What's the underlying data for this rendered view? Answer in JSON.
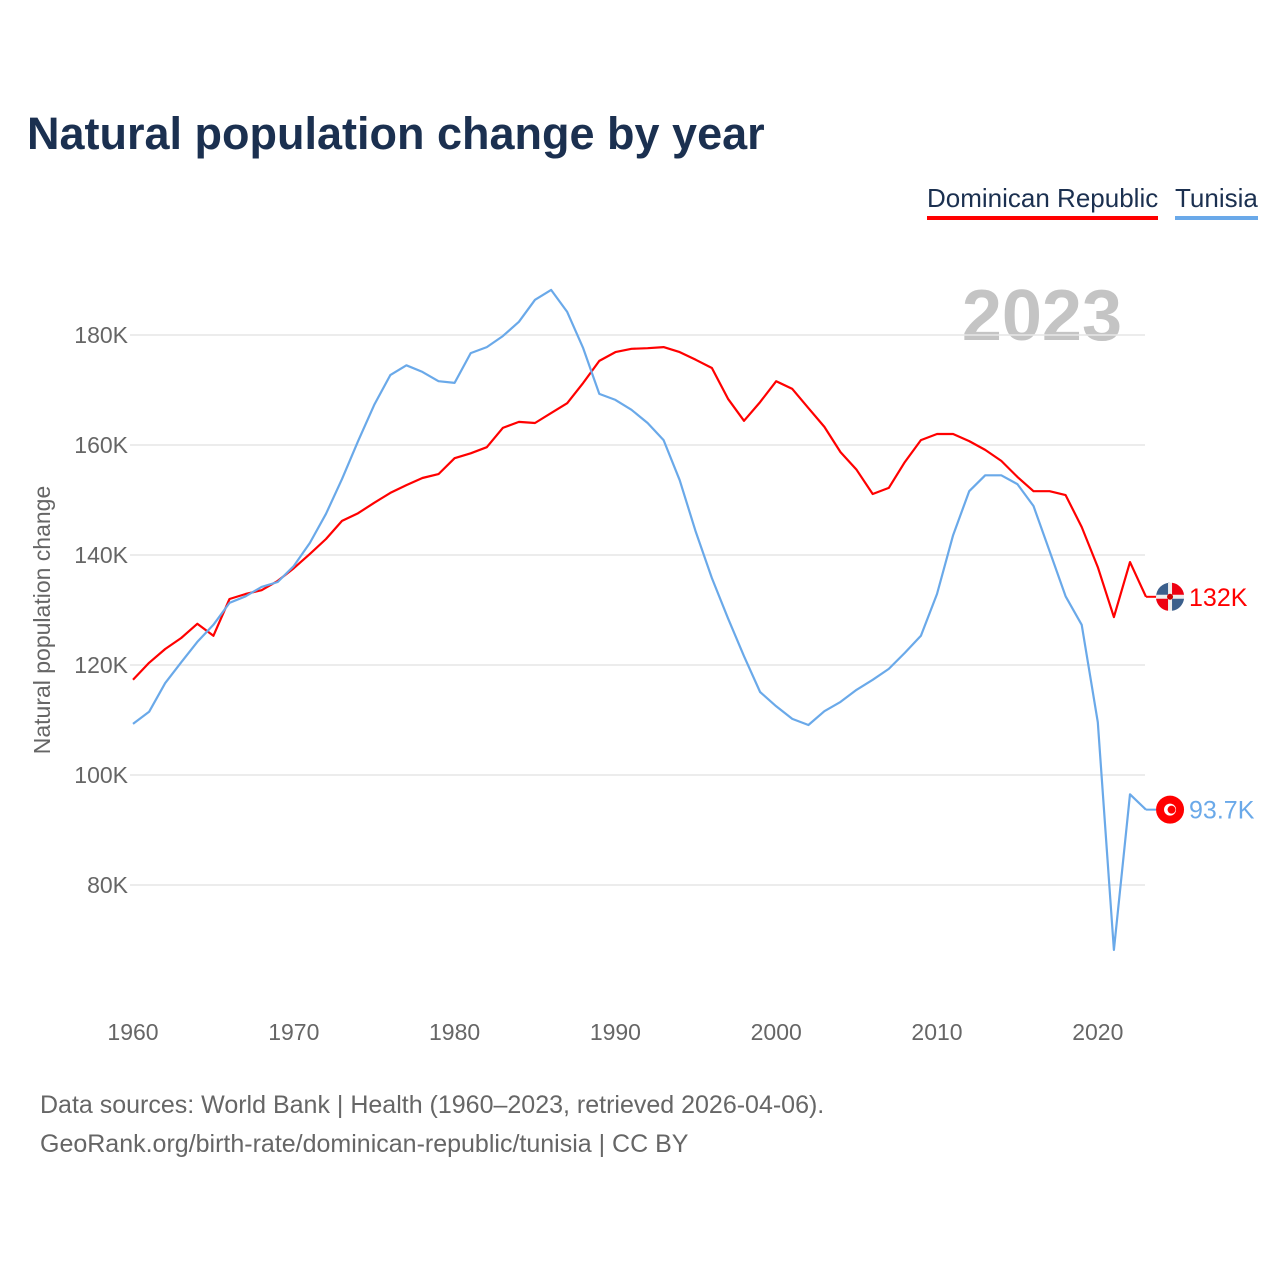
{
  "chart_data": {
    "type": "line",
    "title": "Natural population change by year",
    "ylabel": "Natural population change",
    "xlabel": "",
    "year_watermark": "2023",
    "xlim": [
      1960,
      2023
    ],
    "ylim": [
      60000,
      190000
    ],
    "x_ticks": [
      "1960",
      "1970",
      "1980",
      "1990",
      "2000",
      "2010",
      "2020"
    ],
    "y_ticks": [
      {
        "value": 80000,
        "label": "80K"
      },
      {
        "value": 100000,
        "label": "100K"
      },
      {
        "value": 120000,
        "label": "120K"
      },
      {
        "value": 140000,
        "label": "140K"
      },
      {
        "value": 160000,
        "label": "160K"
      },
      {
        "value": 180000,
        "label": "180K"
      }
    ],
    "grid": true,
    "legend_position": "top-right",
    "x": [
      1960,
      1961,
      1962,
      1963,
      1964,
      1965,
      1966,
      1967,
      1968,
      1969,
      1970,
      1971,
      1972,
      1973,
      1974,
      1975,
      1976,
      1977,
      1978,
      1979,
      1980,
      1981,
      1982,
      1983,
      1984,
      1985,
      1986,
      1987,
      1988,
      1989,
      1990,
      1991,
      1992,
      1993,
      1994,
      1995,
      1996,
      1997,
      1998,
      1999,
      2000,
      2001,
      2002,
      2003,
      2004,
      2005,
      2006,
      2007,
      2008,
      2009,
      2010,
      2011,
      2012,
      2013,
      2014,
      2015,
      2016,
      2017,
      2018,
      2019,
      2020,
      2021,
      2022,
      2023
    ],
    "series": [
      {
        "name": "Dominican Republic",
        "color": "#ff0000",
        "end_label": "132K",
        "values": [
          117300,
          120400,
          122900,
          124900,
          127500,
          125300,
          132000,
          132900,
          133600,
          135300,
          137600,
          140200,
          142900,
          146200,
          147600,
          149500,
          151300,
          152700,
          154000,
          154700,
          157600,
          158500,
          159600,
          163100,
          164200,
          164000,
          165800,
          167600,
          171300,
          175300,
          176900,
          177500,
          177600,
          177800,
          176900,
          175500,
          174000,
          168400,
          164400,
          167800,
          171600,
          170200,
          166700,
          163300,
          158700,
          155500,
          151100,
          152200,
          156900,
          160900,
          162000,
          162000,
          160700,
          159100,
          157100,
          154200,
          151600,
          151600,
          150900,
          145100,
          137800,
          128700,
          138700,
          132400
        ]
      },
      {
        "name": "Tunisia",
        "color": "#6aa9e9",
        "end_label": "93.7K",
        "values": [
          109300,
          111500,
          116700,
          120500,
          124200,
          127300,
          131300,
          132500,
          134200,
          135100,
          138000,
          142200,
          147500,
          153800,
          160700,
          167300,
          172700,
          174500,
          173300,
          171600,
          171300,
          176700,
          177800,
          179800,
          182400,
          186400,
          188200,
          184200,
          177600,
          169300,
          168200,
          166400,
          164000,
          160900,
          153600,
          144200,
          135800,
          128500,
          121600,
          115100,
          112500,
          110200,
          109100,
          111600,
          113300,
          115500,
          117300,
          119300,
          122200,
          125300,
          132900,
          143600,
          151600,
          154500,
          154500,
          152900,
          148900,
          140700,
          132500,
          127300,
          109600,
          68200,
          96500,
          93700
        ]
      }
    ]
  },
  "source": {
    "line1": "Data sources: World Bank | Health (1960–2023, retrieved 2026-04-06).",
    "line2": "GeoRank.org/birth-rate/dominican-republic/tunisia | CC BY"
  }
}
